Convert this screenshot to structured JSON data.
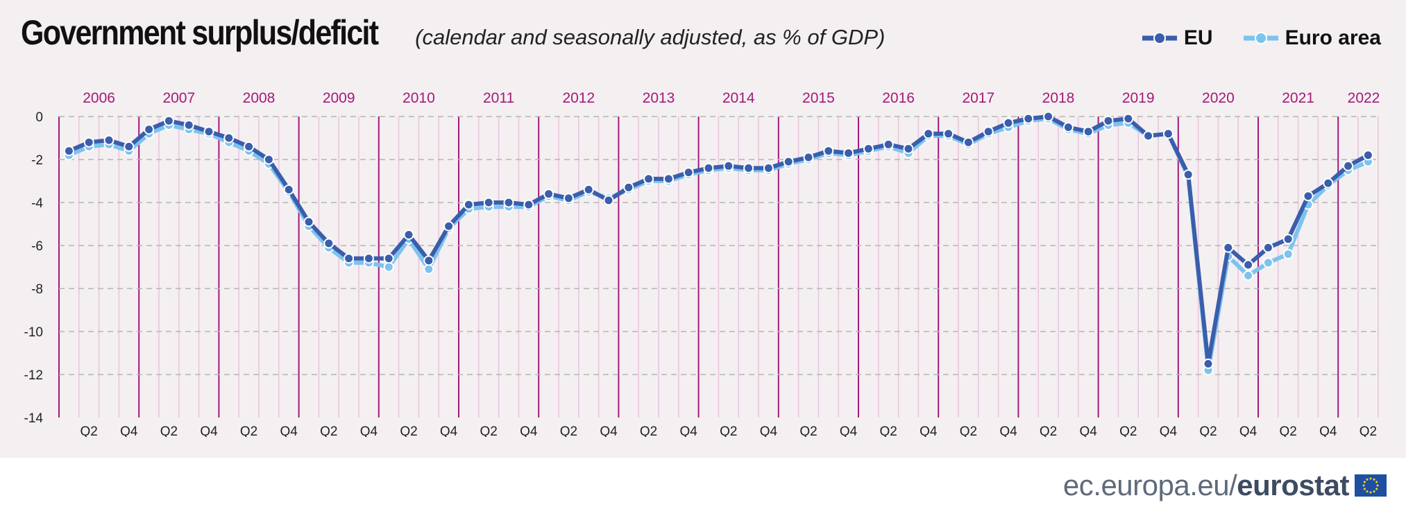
{
  "title": "Government surplus/deficit",
  "subtitle": "(calendar and seasonally adjusted, as % of GDP)",
  "legend": [
    {
      "name": "EU",
      "color": "#3a5eab"
    },
    {
      "name": "Euro area",
      "color": "#7cc3ee"
    }
  ],
  "footer": {
    "prefix": "ec.europa.eu/",
    "brand": "eurostat"
  },
  "colors": {
    "background": "#f4eff1",
    "year_divider": "#a3197b",
    "quarter_line": "#e8c4dc",
    "year_label": "#a3197b",
    "grid": "#b5b5b5"
  },
  "chart_data": {
    "type": "line",
    "title": "Government surplus/deficit",
    "subtitle": "(calendar and seasonally adjusted, as % of GDP)",
    "ylabel": "",
    "xlabel": "",
    "ylim": [
      -14,
      0
    ],
    "yticks": [
      0,
      -2,
      -4,
      -6,
      -8,
      -10,
      -12,
      -14
    ],
    "grid": "horizontal dashed",
    "legend_position": "top-right",
    "years": [
      "2006",
      "2007",
      "2008",
      "2009",
      "2010",
      "2011",
      "2012",
      "2013",
      "2014",
      "2015",
      "2016",
      "2017",
      "2018",
      "2019",
      "2020",
      "2021",
      "2022"
    ],
    "x_tick_labels": [
      "Q2",
      "Q4"
    ],
    "x": [
      "2006Q1",
      "2006Q2",
      "2006Q3",
      "2006Q4",
      "2007Q1",
      "2007Q2",
      "2007Q3",
      "2007Q4",
      "2008Q1",
      "2008Q2",
      "2008Q3",
      "2008Q4",
      "2009Q1",
      "2009Q2",
      "2009Q3",
      "2009Q4",
      "2010Q1",
      "2010Q2",
      "2010Q3",
      "2010Q4",
      "2011Q1",
      "2011Q2",
      "2011Q3",
      "2011Q4",
      "2012Q1",
      "2012Q2",
      "2012Q3",
      "2012Q4",
      "2013Q1",
      "2013Q2",
      "2013Q3",
      "2013Q4",
      "2014Q1",
      "2014Q2",
      "2014Q3",
      "2014Q4",
      "2015Q1",
      "2015Q2",
      "2015Q3",
      "2015Q4",
      "2016Q1",
      "2016Q2",
      "2016Q3",
      "2016Q4",
      "2017Q1",
      "2017Q2",
      "2017Q3",
      "2017Q4",
      "2018Q1",
      "2018Q2",
      "2018Q3",
      "2018Q4",
      "2019Q1",
      "2019Q2",
      "2019Q3",
      "2019Q4",
      "2020Q1",
      "2020Q2",
      "2020Q3",
      "2020Q4",
      "2021Q1",
      "2021Q2",
      "2021Q3",
      "2021Q4",
      "2022Q1",
      "2022Q2"
    ],
    "series": [
      {
        "name": "EU",
        "color": "#3a5eab",
        "values": [
          -1.6,
          -1.2,
          -1.1,
          -1.4,
          -0.6,
          -0.2,
          -0.4,
          -0.7,
          -1.0,
          -1.4,
          -2.0,
          -3.4,
          -4.9,
          -5.9,
          -6.6,
          -6.6,
          -6.6,
          -5.5,
          -6.7,
          -5.1,
          -4.1,
          -4.0,
          -4.0,
          -4.1,
          -3.6,
          -3.8,
          -3.4,
          -3.9,
          -3.3,
          -2.9,
          -2.9,
          -2.6,
          -2.4,
          -2.3,
          -2.4,
          -2.4,
          -2.1,
          -1.9,
          -1.6,
          -1.7,
          -1.5,
          -1.3,
          -1.5,
          -0.8,
          -0.8,
          -1.2,
          -0.7,
          -0.3,
          -0.1,
          0.0,
          -0.5,
          -0.7,
          -0.2,
          -0.1,
          -0.9,
          -0.8,
          -2.7,
          -11.5,
          -6.1,
          -6.9,
          -6.1,
          -5.7,
          -3.7,
          -3.1,
          -2.3,
          -1.8
        ]
      },
      {
        "name": "Euro area",
        "color": "#7cc3ee",
        "values": [
          -1.8,
          -1.4,
          -1.3,
          -1.6,
          -0.8,
          -0.4,
          -0.6,
          -0.8,
          -1.2,
          -1.6,
          -2.2,
          -3.5,
          -5.1,
          -6.1,
          -6.8,
          -6.8,
          -7.0,
          -5.7,
          -7.1,
          -5.2,
          -4.3,
          -4.2,
          -4.2,
          -4.2,
          -3.7,
          -3.9,
          -3.5,
          -3.8,
          -3.4,
          -3.0,
          -3.0,
          -2.7,
          -2.5,
          -2.4,
          -2.5,
          -2.5,
          -2.2,
          -2.0,
          -1.7,
          -1.8,
          -1.6,
          -1.4,
          -1.7,
          -0.9,
          -0.9,
          -1.3,
          -0.8,
          -0.5,
          -0.2,
          -0.1,
          -0.6,
          -0.8,
          -0.4,
          -0.3,
          -0.9,
          -0.8,
          -2.8,
          -11.8,
          -6.5,
          -7.4,
          -6.8,
          -6.4,
          -4.1,
          -3.2,
          -2.5,
          -2.1
        ]
      }
    ]
  }
}
